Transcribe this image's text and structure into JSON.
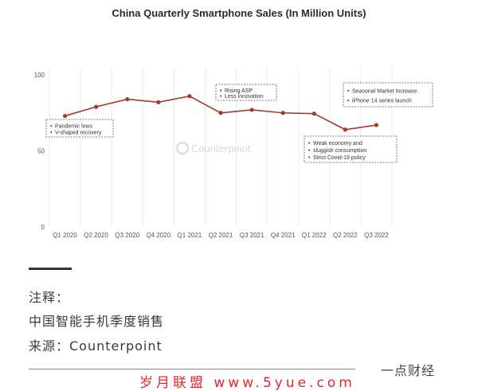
{
  "chart_data": {
    "type": "line",
    "title": "China Quarterly Smartphone Sales (In Million Units)",
    "categories": [
      "Q1 2020",
      "Q2 2020",
      "Q3 2020",
      "Q4 2020",
      "Q1 2021",
      "Q2 2021",
      "Q3 2021",
      "Q4 2021",
      "Q1 2022",
      "Q2 2022",
      "Q3 2022"
    ],
    "series": [
      {
        "values": [
          73,
          79,
          84,
          82,
          86,
          75,
          77,
          75,
          74.5,
          64,
          67
        ]
      }
    ],
    "ylim": [
      0,
      100
    ],
    "yticks": [
      0,
      50,
      100
    ],
    "grid": "vertical",
    "line_color": "#a23a2a",
    "annotations": [
      {
        "lines": [
          "Pandemic lows",
          "V-shaped recovery"
        ]
      },
      {
        "lines": [
          "Rising ASP",
          "Less innovation"
        ]
      },
      {
        "lines": [
          "Seasonal Market Increase",
          "iPhone 14 series launch"
        ]
      },
      {
        "lines": [
          "Weak economy and",
          "sluggish consumption",
          "Strict Covid-19 policy"
        ]
      }
    ],
    "watermark": "Counterpoint"
  },
  "notes": {
    "label": "注释：",
    "line1": "中国智能手机季度销售",
    "source": "来源：Counterpoint"
  },
  "footer": {
    "brand": "一点财经",
    "site_watermark": "岁月联盟 www.5yue.com"
  }
}
